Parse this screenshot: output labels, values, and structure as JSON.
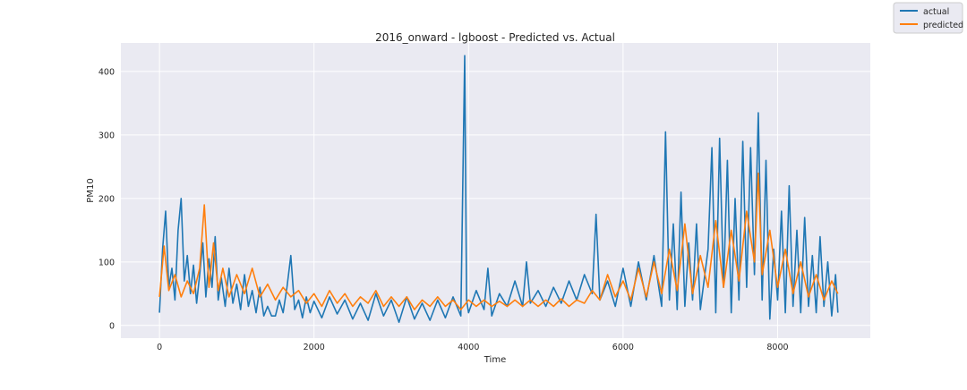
{
  "chart_data": {
    "type": "line",
    "title": "2016_onward - lgboost - Predicted vs. Actual",
    "xlabel": "Time",
    "ylabel": "PM10",
    "xlim": [
      -500,
      9200
    ],
    "ylim": [
      -20,
      445
    ],
    "x_ticks": [
      0,
      2000,
      4000,
      6000,
      8000
    ],
    "y_ticks": [
      0,
      100,
      200,
      300,
      400
    ],
    "grid": true,
    "legend_position": "top-right",
    "background": "#eaeaf2",
    "grid_color": "#ffffff",
    "series": [
      {
        "name": "actual",
        "color": "#1f77b4",
        "values": [
          [
            0,
            20
          ],
          [
            40,
            120
          ],
          [
            80,
            180
          ],
          [
            120,
            60
          ],
          [
            160,
            90
          ],
          [
            200,
            40
          ],
          [
            240,
            150
          ],
          [
            280,
            200
          ],
          [
            320,
            70
          ],
          [
            360,
            110
          ],
          [
            400,
            50
          ],
          [
            440,
            95
          ],
          [
            480,
            35
          ],
          [
            520,
            80
          ],
          [
            560,
            130
          ],
          [
            600,
            45
          ],
          [
            640,
            105
          ],
          [
            680,
            60
          ],
          [
            720,
            140
          ],
          [
            760,
            40
          ],
          [
            800,
            75
          ],
          [
            850,
            30
          ],
          [
            900,
            90
          ],
          [
            950,
            35
          ],
          [
            1000,
            65
          ],
          [
            1050,
            25
          ],
          [
            1100,
            80
          ],
          [
            1150,
            30
          ],
          [
            1200,
            55
          ],
          [
            1250,
            20
          ],
          [
            1300,
            60
          ],
          [
            1350,
            15
          ],
          [
            1400,
            30
          ],
          [
            1450,
            15
          ],
          [
            1500,
            15
          ],
          [
            1550,
            40
          ],
          [
            1600,
            20
          ],
          [
            1650,
            60
          ],
          [
            1700,
            110
          ],
          [
            1750,
            25
          ],
          [
            1800,
            40
          ],
          [
            1850,
            12
          ],
          [
            1900,
            45
          ],
          [
            1950,
            20
          ],
          [
            2000,
            38
          ],
          [
            2100,
            12
          ],
          [
            2200,
            45
          ],
          [
            2300,
            18
          ],
          [
            2400,
            40
          ],
          [
            2500,
            10
          ],
          [
            2600,
            35
          ],
          [
            2700,
            8
          ],
          [
            2800,
            50
          ],
          [
            2900,
            15
          ],
          [
            3000,
            40
          ],
          [
            3100,
            5
          ],
          [
            3200,
            45
          ],
          [
            3300,
            10
          ],
          [
            3400,
            35
          ],
          [
            3500,
            8
          ],
          [
            3600,
            40
          ],
          [
            3700,
            12
          ],
          [
            3800,
            45
          ],
          [
            3900,
            15
          ],
          [
            3950,
            425
          ],
          [
            3975,
            40
          ],
          [
            4000,
            20
          ],
          [
            4100,
            55
          ],
          [
            4200,
            25
          ],
          [
            4250,
            90
          ],
          [
            4300,
            15
          ],
          [
            4400,
            50
          ],
          [
            4500,
            30
          ],
          [
            4600,
            70
          ],
          [
            4700,
            30
          ],
          [
            4750,
            100
          ],
          [
            4800,
            35
          ],
          [
            4900,
            55
          ],
          [
            5000,
            30
          ],
          [
            5100,
            60
          ],
          [
            5200,
            35
          ],
          [
            5300,
            70
          ],
          [
            5400,
            40
          ],
          [
            5500,
            80
          ],
          [
            5600,
            50
          ],
          [
            5650,
            175
          ],
          [
            5700,
            40
          ],
          [
            5800,
            70
          ],
          [
            5900,
            30
          ],
          [
            6000,
            90
          ],
          [
            6100,
            30
          ],
          [
            6200,
            100
          ],
          [
            6300,
            40
          ],
          [
            6400,
            110
          ],
          [
            6500,
            30
          ],
          [
            6550,
            305
          ],
          [
            6600,
            40
          ],
          [
            6650,
            160
          ],
          [
            6700,
            25
          ],
          [
            6750,
            210
          ],
          [
            6800,
            30
          ],
          [
            6850,
            130
          ],
          [
            6900,
            40
          ],
          [
            6950,
            160
          ],
          [
            7000,
            25
          ],
          [
            7100,
            120
          ],
          [
            7150,
            280
          ],
          [
            7200,
            20
          ],
          [
            7250,
            295
          ],
          [
            7300,
            60
          ],
          [
            7350,
            260
          ],
          [
            7400,
            20
          ],
          [
            7450,
            200
          ],
          [
            7500,
            40
          ],
          [
            7550,
            290
          ],
          [
            7600,
            60
          ],
          [
            7650,
            280
          ],
          [
            7700,
            80
          ],
          [
            7750,
            335
          ],
          [
            7800,
            40
          ],
          [
            7850,
            260
          ],
          [
            7900,
            10
          ],
          [
            7950,
            120
          ],
          [
            8000,
            40
          ],
          [
            8050,
            180
          ],
          [
            8100,
            20
          ],
          [
            8150,
            220
          ],
          [
            8200,
            30
          ],
          [
            8250,
            150
          ],
          [
            8300,
            20
          ],
          [
            8350,
            170
          ],
          [
            8400,
            30
          ],
          [
            8450,
            110
          ],
          [
            8500,
            20
          ],
          [
            8550,
            140
          ],
          [
            8600,
            30
          ],
          [
            8650,
            100
          ],
          [
            8700,
            15
          ],
          [
            8750,
            80
          ],
          [
            8780,
            20
          ]
        ]
      },
      {
        "name": "predicted",
        "color": "#ff7f0e",
        "values": [
          [
            0,
            45
          ],
          [
            60,
            125
          ],
          [
            120,
            55
          ],
          [
            200,
            80
          ],
          [
            280,
            45
          ],
          [
            360,
            70
          ],
          [
            440,
            50
          ],
          [
            520,
            90
          ],
          [
            580,
            190
          ],
          [
            640,
            60
          ],
          [
            700,
            130
          ],
          [
            760,
            55
          ],
          [
            820,
            90
          ],
          [
            900,
            45
          ],
          [
            1000,
            80
          ],
          [
            1100,
            50
          ],
          [
            1200,
            90
          ],
          [
            1300,
            45
          ],
          [
            1400,
            65
          ],
          [
            1500,
            40
          ],
          [
            1600,
            60
          ],
          [
            1700,
            45
          ],
          [
            1800,
            55
          ],
          [
            1900,
            35
          ],
          [
            2000,
            50
          ],
          [
            2100,
            30
          ],
          [
            2200,
            55
          ],
          [
            2300,
            35
          ],
          [
            2400,
            50
          ],
          [
            2500,
            30
          ],
          [
            2600,
            45
          ],
          [
            2700,
            35
          ],
          [
            2800,
            55
          ],
          [
            2900,
            30
          ],
          [
            3000,
            45
          ],
          [
            3100,
            30
          ],
          [
            3200,
            45
          ],
          [
            3300,
            25
          ],
          [
            3400,
            40
          ],
          [
            3500,
            30
          ],
          [
            3600,
            45
          ],
          [
            3700,
            30
          ],
          [
            3800,
            40
          ],
          [
            3900,
            25
          ],
          [
            4000,
            40
          ],
          [
            4100,
            30
          ],
          [
            4200,
            40
          ],
          [
            4300,
            30
          ],
          [
            4400,
            38
          ],
          [
            4500,
            30
          ],
          [
            4600,
            40
          ],
          [
            4700,
            30
          ],
          [
            4800,
            40
          ],
          [
            4900,
            30
          ],
          [
            5000,
            40
          ],
          [
            5100,
            30
          ],
          [
            5200,
            42
          ],
          [
            5300,
            30
          ],
          [
            5400,
            40
          ],
          [
            5500,
            35
          ],
          [
            5600,
            55
          ],
          [
            5700,
            40
          ],
          [
            5800,
            80
          ],
          [
            5900,
            45
          ],
          [
            6000,
            70
          ],
          [
            6100,
            40
          ],
          [
            6200,
            90
          ],
          [
            6300,
            45
          ],
          [
            6400,
            100
          ],
          [
            6500,
            50
          ],
          [
            6600,
            120
          ],
          [
            6700,
            55
          ],
          [
            6800,
            160
          ],
          [
            6900,
            50
          ],
          [
            7000,
            110
          ],
          [
            7100,
            60
          ],
          [
            7200,
            165
          ],
          [
            7300,
            60
          ],
          [
            7400,
            150
          ],
          [
            7500,
            70
          ],
          [
            7600,
            180
          ],
          [
            7700,
            100
          ],
          [
            7750,
            240
          ],
          [
            7800,
            80
          ],
          [
            7900,
            150
          ],
          [
            8000,
            60
          ],
          [
            8100,
            120
          ],
          [
            8200,
            50
          ],
          [
            8300,
            100
          ],
          [
            8400,
            45
          ],
          [
            8500,
            80
          ],
          [
            8600,
            40
          ],
          [
            8700,
            70
          ],
          [
            8780,
            50
          ]
        ]
      }
    ]
  }
}
